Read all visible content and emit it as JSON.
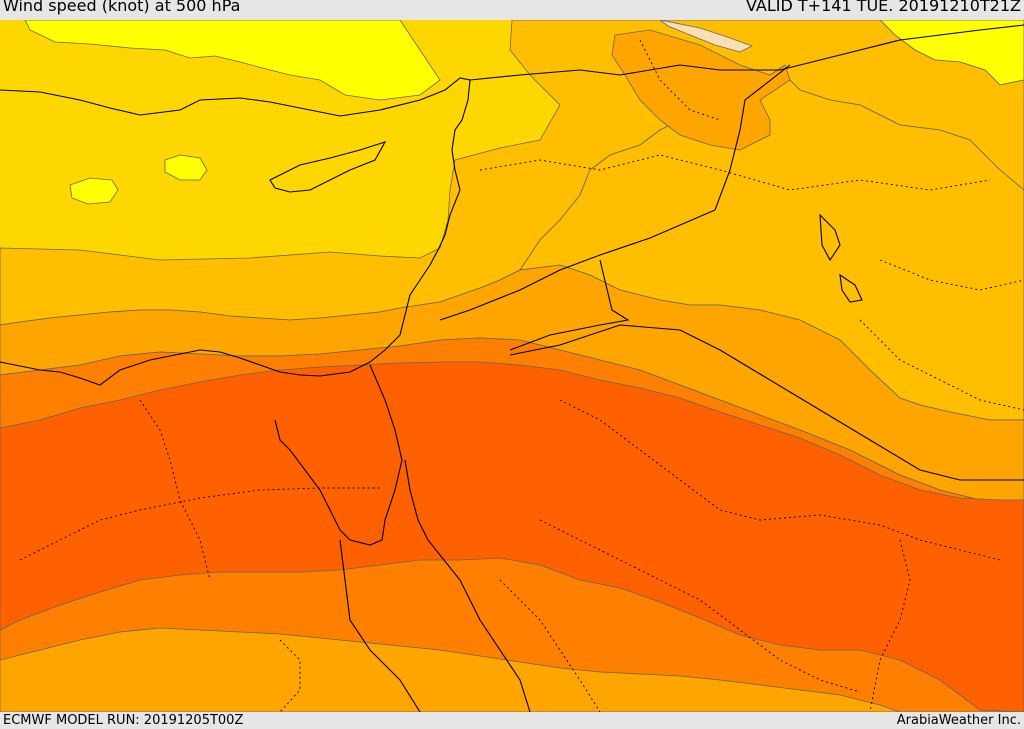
{
  "header": {
    "title": "Wind speed (knot) at 500 hPa",
    "valid": "VALID T+141 TUE. 20191210T21Z"
  },
  "footer": {
    "model_run": "ECMWF MODEL RUN: 20191205T00Z",
    "credit": "ArabiaWeather Inc."
  },
  "colors": {
    "band_light": "#ffff00",
    "band_yellow": "#ffd700",
    "band_gold": "#ffbe00",
    "band_amber": "#ffa500",
    "band_orange": "#ff7f00",
    "band_deep": "#ff6000",
    "band_peak": "#f8e0b4"
  }
}
